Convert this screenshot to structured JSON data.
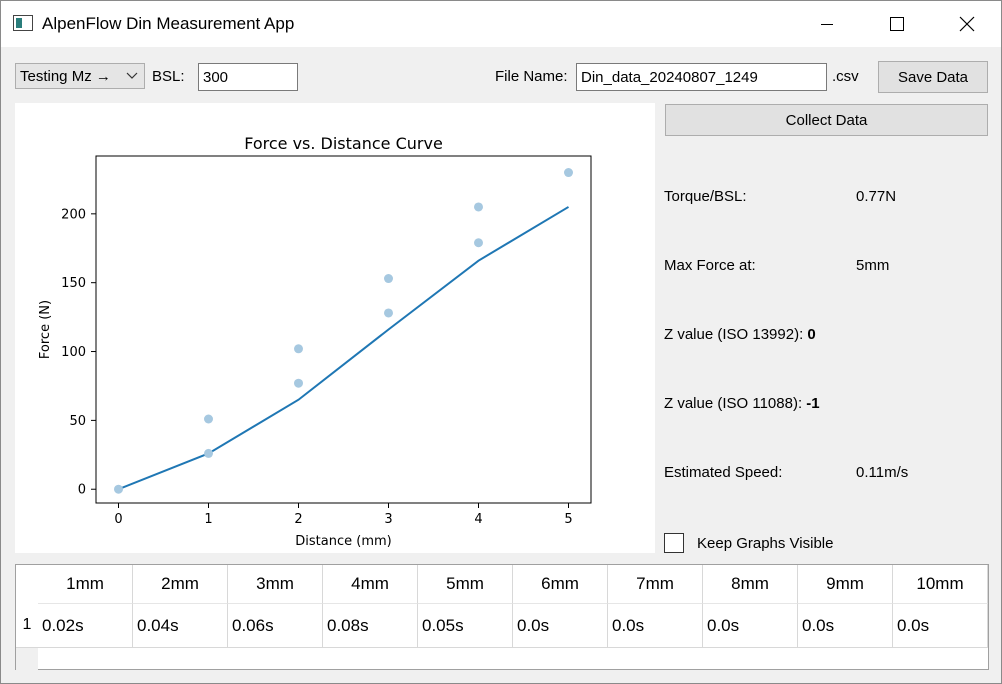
{
  "window": {
    "title": "AlpenFlow Din Measurement App"
  },
  "toolbar": {
    "mode_select": "Testing Mz →",
    "bsl_label": "BSL:",
    "bsl_value": "300",
    "file_name_label": "File Name:",
    "file_name_value": "Din_data_20240807_1249",
    "file_ext": ".csv",
    "save_label": "Save Data"
  },
  "right_panel": {
    "collect_label": "Collect Data",
    "torque_label": "Torque/BSL:",
    "torque_value": "0.77N",
    "max_force_label": "Max Force at:",
    "max_force_value": "5mm",
    "z13992_label": "Z value (ISO 13992):",
    "z13992_value": "0",
    "z11088_label": "Z value (ISO 11088):",
    "z11088_value": "-1",
    "speed_label": "Estimated Speed:",
    "speed_value": "0.11m/s",
    "keep_visible_label": "Keep Graphs Visible",
    "keep_visible_checked": false
  },
  "table": {
    "headers": [
      "1mm",
      "2mm",
      "3mm",
      "4mm",
      "5mm",
      "6mm",
      "7mm",
      "8mm",
      "9mm",
      "10mm"
    ],
    "row_label": "1",
    "values": [
      "0.02s",
      "0.04s",
      "0.06s",
      "0.08s",
      "0.05s",
      "0.0s",
      "0.0s",
      "0.0s",
      "0.0s",
      "0.0s"
    ]
  },
  "chart_data": {
    "type": "line",
    "title": "Force vs. Distance Curve",
    "xlabel": "Distance (mm)",
    "ylabel": "Force (N)",
    "xlim": [
      -0.25,
      5.25
    ],
    "ylim": [
      -10,
      242
    ],
    "xticks": [
      0,
      1,
      2,
      3,
      4,
      5
    ],
    "yticks": [
      0,
      50,
      100,
      150,
      200
    ],
    "grid": false,
    "series": [
      {
        "kind": "line",
        "color": "#1f77b4",
        "x": [
          0,
          1,
          2,
          3,
          4,
          5
        ],
        "y": [
          0,
          26,
          65,
          116,
          166,
          205
        ]
      },
      {
        "kind": "scatter",
        "color": "#a6c8e0",
        "x": [
          0,
          1,
          1,
          2,
          2,
          3,
          3,
          4,
          4,
          5
        ],
        "y": [
          0,
          26,
          51,
          77,
          102,
          128,
          153,
          179,
          205,
          230
        ]
      }
    ]
  }
}
